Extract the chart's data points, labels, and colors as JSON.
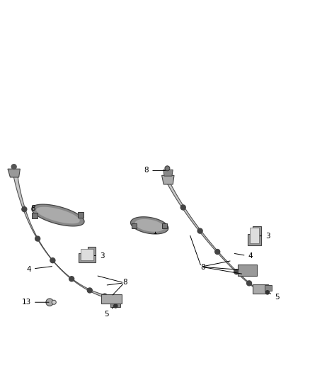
{
  "bg_color": "#ffffff",
  "fig_width": 4.38,
  "fig_height": 5.33,
  "dpi": 100,
  "line_color": "#333333",
  "part_color": "#888888",
  "part_dark": "#444444",
  "part_light": "#bbbbbb",
  "label_fontsize": 7.5
}
